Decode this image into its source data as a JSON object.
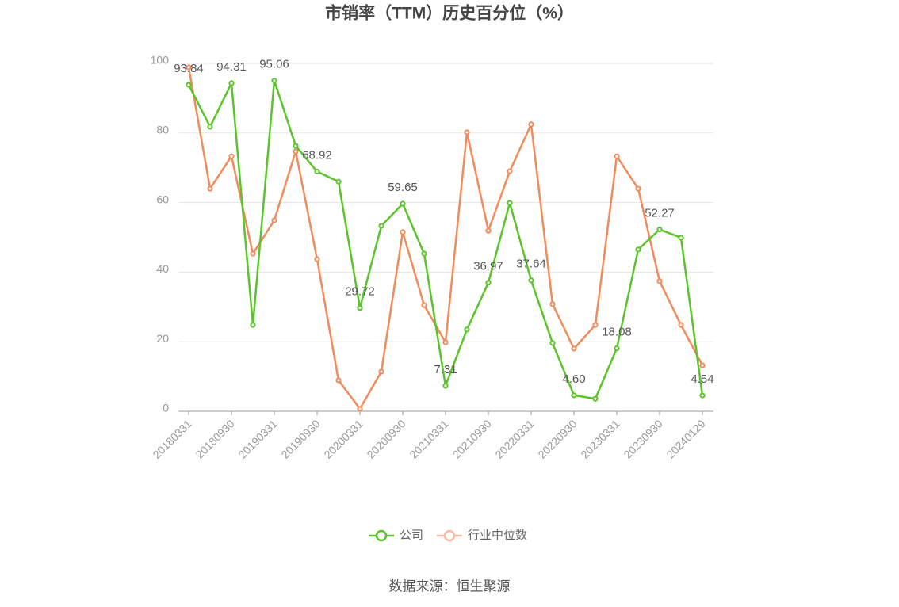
{
  "chart_data": {
    "type": "line",
    "title": "市销率（TTM）历史百分位（%）",
    "source": "数据来源：恒生聚源",
    "categories": [
      "20180331",
      null,
      "20180930",
      null,
      "20190331",
      null,
      "20190930",
      null,
      "20200331",
      null,
      "20200930",
      null,
      "20210331",
      null,
      "20210930",
      null,
      "20220331",
      null,
      "20220930",
      null,
      "20230331",
      null,
      "20230930",
      null,
      "20240129"
    ],
    "series": [
      {
        "name": "公司",
        "color": "#5ac42a",
        "values": [
          93.84,
          81.8,
          94.31,
          24.8,
          95.06,
          76.3,
          68.92,
          66,
          29.72,
          53.3,
          59.65,
          45.3,
          7.31,
          23.5,
          36.97,
          59.9,
          37.64,
          19.6,
          4.6,
          3.6,
          18.08,
          46.5,
          52.27,
          49.9,
          4.54
        ],
        "value_labels": [
          "93.84",
          null,
          "94.31",
          null,
          "95.06",
          null,
          "68.92",
          null,
          "29.72",
          null,
          "59.65",
          null,
          "7.31",
          null,
          "36.97",
          null,
          "37.64",
          null,
          "4.60",
          null,
          "18.08",
          null,
          "52.27",
          null,
          "4.54"
        ]
      },
      {
        "name": "行业中位数",
        "color": "#f28b5c",
        "values": [
          98.9,
          64,
          73.3,
          45.3,
          54.9,
          74.7,
          43.7,
          8.9,
          0.7,
          11.4,
          51.5,
          30.5,
          19.8,
          80.2,
          51.9,
          69,
          82.5,
          30.8,
          18,
          24.8,
          73.3,
          64,
          37.4,
          24.8,
          13.2
        ]
      }
    ],
    "ylim": [
      0,
      100
    ],
    "yticks": [
      0,
      20,
      40,
      60,
      80,
      100
    ],
    "grid": true
  }
}
